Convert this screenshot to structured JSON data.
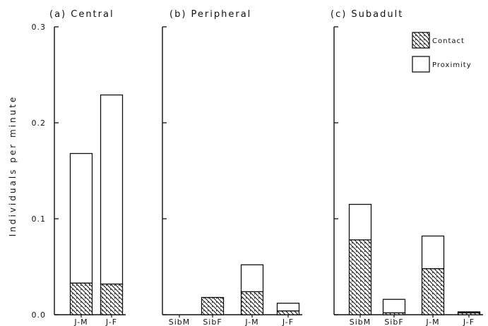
{
  "chart_data": {
    "type": "bar",
    "stacked": true,
    "ylabel": "Individuals per minute",
    "ylim": [
      0,
      0.3
    ],
    "yticks": [
      "0.0",
      "0.1",
      "0.2",
      "0.3"
    ],
    "grid": false,
    "legend_position": "top-right (panel c)",
    "legend": [
      {
        "name": "Contact",
        "pattern": "hatched"
      },
      {
        "name": "Proximity",
        "pattern": "open"
      }
    ],
    "colors": {
      "ink": "#111111",
      "background": "#ffffff"
    },
    "panels": [
      {
        "title": "(a) Central",
        "categories": [
          "J-M",
          "J-F"
        ],
        "series": [
          {
            "name": "Contact",
            "values": [
              0.033,
              0.032
            ]
          },
          {
            "name": "Proximity",
            "values": [
              0.135,
              0.197
            ]
          }
        ]
      },
      {
        "title": "(b) Peripheral",
        "categories": [
          "SibM",
          "SibF",
          "J-M",
          "J-F"
        ],
        "series": [
          {
            "name": "Contact",
            "values": [
              0,
              0.018,
              0.024,
              0.004
            ]
          },
          {
            "name": "Proximity",
            "values": [
              0,
              0,
              0.028,
              0.008
            ]
          }
        ]
      },
      {
        "title": "(c) Subadult",
        "categories": [
          "SibM",
          "SibF",
          "J-M",
          "J-F"
        ],
        "series": [
          {
            "name": "Contact",
            "values": [
              0.078,
              0.002,
              0.048,
              0.002
            ]
          },
          {
            "name": "Proximity",
            "values": [
              0.037,
              0.014,
              0.034,
              0.001
            ]
          }
        ]
      }
    ]
  }
}
